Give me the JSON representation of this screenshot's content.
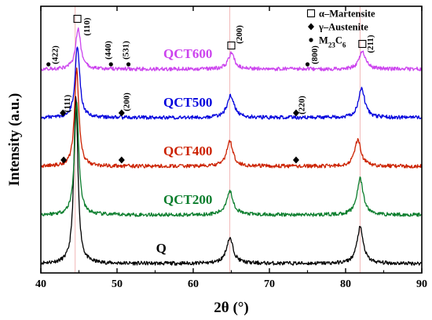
{
  "chart_data": {
    "type": "line",
    "title": "",
    "xlabel": "2θ (°)",
    "ylabel": "Intensity (a.u.)",
    "xlim": [
      40,
      90
    ],
    "xticks": [
      40,
      50,
      60,
      70,
      80,
      90
    ],
    "y_ticks_shown": false,
    "grid": false,
    "series": [
      {
        "name": "Q",
        "color": "#000000",
        "baseline": 0.0,
        "peaks": [
          {
            "x": 44.6,
            "height": 5.3,
            "width": 0.32
          },
          {
            "x": 64.8,
            "height": 0.8,
            "width": 0.55
          },
          {
            "x": 81.9,
            "height": 1.15,
            "width": 0.5
          }
        ]
      },
      {
        "name": "QCT200",
        "color": "#0a7d2c",
        "baseline": 1.55,
        "peaks": [
          {
            "x": 44.7,
            "height": 3.55,
            "width": 0.34
          },
          {
            "x": 64.8,
            "height": 0.75,
            "width": 0.55
          },
          {
            "x": 81.9,
            "height": 1.15,
            "width": 0.5
          }
        ]
      },
      {
        "name": "QCT400",
        "color": "#cc2200",
        "baseline": 3.1,
        "peaks": [
          {
            "x": 44.7,
            "height": 3.1,
            "width": 0.34
          },
          {
            "x": 64.8,
            "height": 0.8,
            "width": 0.5
          },
          {
            "x": 81.6,
            "height": 0.85,
            "width": 0.5
          }
        ]
      },
      {
        "name": "QCT500",
        "color": "#0000dd",
        "baseline": 4.65,
        "peaks": [
          {
            "x": 44.8,
            "height": 2.3,
            "width": 0.36
          },
          {
            "x": 64.9,
            "height": 0.7,
            "width": 0.55
          },
          {
            "x": 82.1,
            "height": 0.95,
            "width": 0.5
          }
        ]
      },
      {
        "name": "QCT600",
        "color": "#cc44ee",
        "baseline": 6.2,
        "peaks": [
          {
            "x": 44.9,
            "height": 1.3,
            "width": 0.4
          },
          {
            "x": 65.0,
            "height": 0.5,
            "width": 0.5
          },
          {
            "x": 82.2,
            "height": 0.55,
            "width": 0.5
          }
        ]
      }
    ],
    "reference_lines_x": [
      44.5,
      64.8,
      81.9
    ],
    "peak_labels": [
      {
        "text": "(422)",
        "x": 42.2,
        "y": 6.65
      },
      {
        "text": "(110)",
        "x": 46.4,
        "y": 7.55
      },
      {
        "text": "(440)",
        "x": 49.2,
        "y": 6.8
      },
      {
        "text": "(531)",
        "x": 51.5,
        "y": 6.8
      },
      {
        "text": "(200)",
        "x": 66.4,
        "y": 7.3
      },
      {
        "text": "(800)",
        "x": 76.3,
        "y": 6.65
      },
      {
        "text": "(211)",
        "x": 83.6,
        "y": 7.0
      },
      {
        "text": "(111)",
        "x": 43.8,
        "y": 5.1
      },
      {
        "text": "(200)",
        "x": 51.6,
        "y": 5.15
      },
      {
        "text": "(220)",
        "x": 74.6,
        "y": 5.05
      }
    ],
    "markers": [
      {
        "type": "circle",
        "x": 41.0,
        "y": 6.35
      },
      {
        "type": "circle",
        "x": 49.2,
        "y": 6.35
      },
      {
        "type": "circle",
        "x": 51.5,
        "y": 6.35
      },
      {
        "type": "circle",
        "x": 75.0,
        "y": 6.35
      },
      {
        "type": "square",
        "x": 44.8,
        "y": 7.8
      },
      {
        "type": "square",
        "x": 65.0,
        "y": 6.95
      },
      {
        "type": "square",
        "x": 82.2,
        "y": 7.0
      },
      {
        "type": "diamond",
        "x": 42.9,
        "y": 4.8
      },
      {
        "type": "diamond",
        "x": 50.6,
        "y": 4.8
      },
      {
        "type": "diamond",
        "x": 73.5,
        "y": 4.8
      },
      {
        "type": "diamond",
        "x": 43.0,
        "y": 3.3
      },
      {
        "type": "diamond",
        "x": 50.6,
        "y": 3.3
      },
      {
        "type": "diamond",
        "x": 73.5,
        "y": 3.3
      }
    ],
    "legend": {
      "placement": "top-right",
      "entries": [
        {
          "symbol": "square",
          "label": "α–Martensite"
        },
        {
          "symbol": "diamond",
          "label": "γ–Austenite"
        },
        {
          "symbol": "circle",
          "label": "M23C6"
        }
      ]
    }
  }
}
